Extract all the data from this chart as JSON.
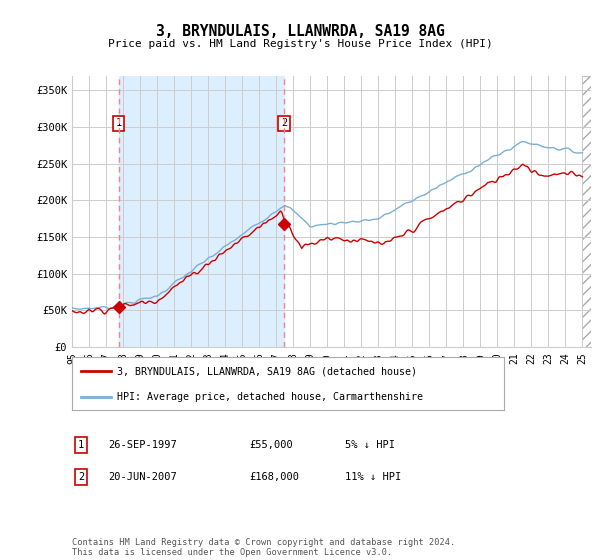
{
  "title": "3, BRYNDULAIS, LLANWRDA, SA19 8AG",
  "subtitle": "Price paid vs. HM Land Registry's House Price Index (HPI)",
  "legend_line1": "3, BRYNDULAIS, LLANWRDA, SA19 8AG (detached house)",
  "legend_line2": "HPI: Average price, detached house, Carmarthenshire",
  "transaction1_date": "26-SEP-1997",
  "transaction1_price": "£55,000",
  "transaction1_hpi": "5% ↓ HPI",
  "transaction2_date": "20-JUN-2007",
  "transaction2_price": "£168,000",
  "transaction2_hpi": "11% ↓ HPI",
  "price_line_color": "#cc0000",
  "hpi_line_color": "#7ab0d4",
  "dashed_line_color": "#ee8888",
  "marker_color": "#cc0000",
  "background_color": "#ffffff",
  "shaded_color": "#ddeeff",
  "grid_color": "#cccccc",
  "ylim": [
    0,
    370000
  ],
  "yticks": [
    0,
    50000,
    100000,
    150000,
    200000,
    250000,
    300000,
    350000
  ],
  "ytick_labels": [
    "£0",
    "£50K",
    "£100K",
    "£150K",
    "£200K",
    "£250K",
    "£300K",
    "£350K"
  ],
  "copyright_text": "Contains HM Land Registry data © Crown copyright and database right 2024.\nThis data is licensed under the Open Government Licence v3.0.",
  "transaction1_x": 1997.74,
  "transaction1_y": 55000,
  "transaction2_x": 2007.47,
  "transaction2_y": 168000,
  "xlim_start": 1995.0,
  "xlim_end": 2025.5
}
